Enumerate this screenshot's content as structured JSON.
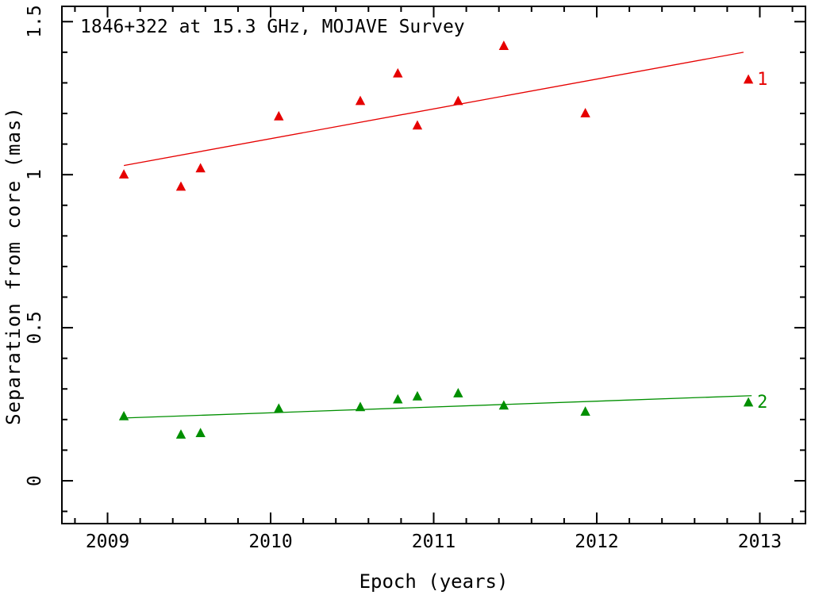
{
  "chart_data": {
    "type": "scatter",
    "title": "1846+322 at 15.3 GHz, MOJAVE Survey",
    "xlabel": "Epoch (years)",
    "ylabel": "Separation from core (mas)",
    "xlim": [
      2008.72,
      2013.28
    ],
    "ylim": [
      -0.14,
      1.55
    ],
    "x_major_ticks": [
      2009,
      2010,
      2011,
      2012,
      2013
    ],
    "x_tick_labels": [
      "2009",
      "2010",
      "2011",
      "2012",
      "2013"
    ],
    "x_minor_step": 0.2,
    "y_major_ticks": [
      0,
      0.5,
      1,
      1.5
    ],
    "y_tick_labels": [
      "0",
      "0.5",
      "1",
      "1.5"
    ],
    "y_minor_step": 0.1,
    "grid": false,
    "legend_position": "line-end-labels",
    "series": [
      {
        "name": "component-1",
        "label": "1",
        "color": "#e60000",
        "marker": "triangle-up",
        "x": [
          2009.1,
          2009.45,
          2009.57,
          2010.05,
          2010.55,
          2010.78,
          2010.9,
          2011.15,
          2011.43,
          2011.93,
          2012.93
        ],
        "y": [
          1.0,
          0.96,
          1.02,
          1.19,
          1.24,
          1.33,
          1.16,
          1.24,
          1.42,
          1.2,
          1.31
        ],
        "fit_line": {
          "x": [
            2009.1,
            2012.9
          ],
          "y": [
            1.03,
            1.4
          ]
        }
      },
      {
        "name": "component-2",
        "label": "2",
        "color": "#008f00",
        "marker": "triangle-up",
        "x": [
          2009.1,
          2009.45,
          2009.57,
          2010.05,
          2010.55,
          2010.78,
          2010.9,
          2011.15,
          2011.43,
          2011.93,
          2012.93
        ],
        "y": [
          0.21,
          0.15,
          0.155,
          0.235,
          0.24,
          0.265,
          0.275,
          0.285,
          0.245,
          0.225,
          0.255
        ],
        "fit_line": {
          "x": [
            2009.1,
            2012.95
          ],
          "y": [
            0.205,
            0.278
          ]
        }
      }
    ]
  },
  "styles": {
    "axis_color": "#000000",
    "text_color": "#000000",
    "background": "#ffffff"
  }
}
